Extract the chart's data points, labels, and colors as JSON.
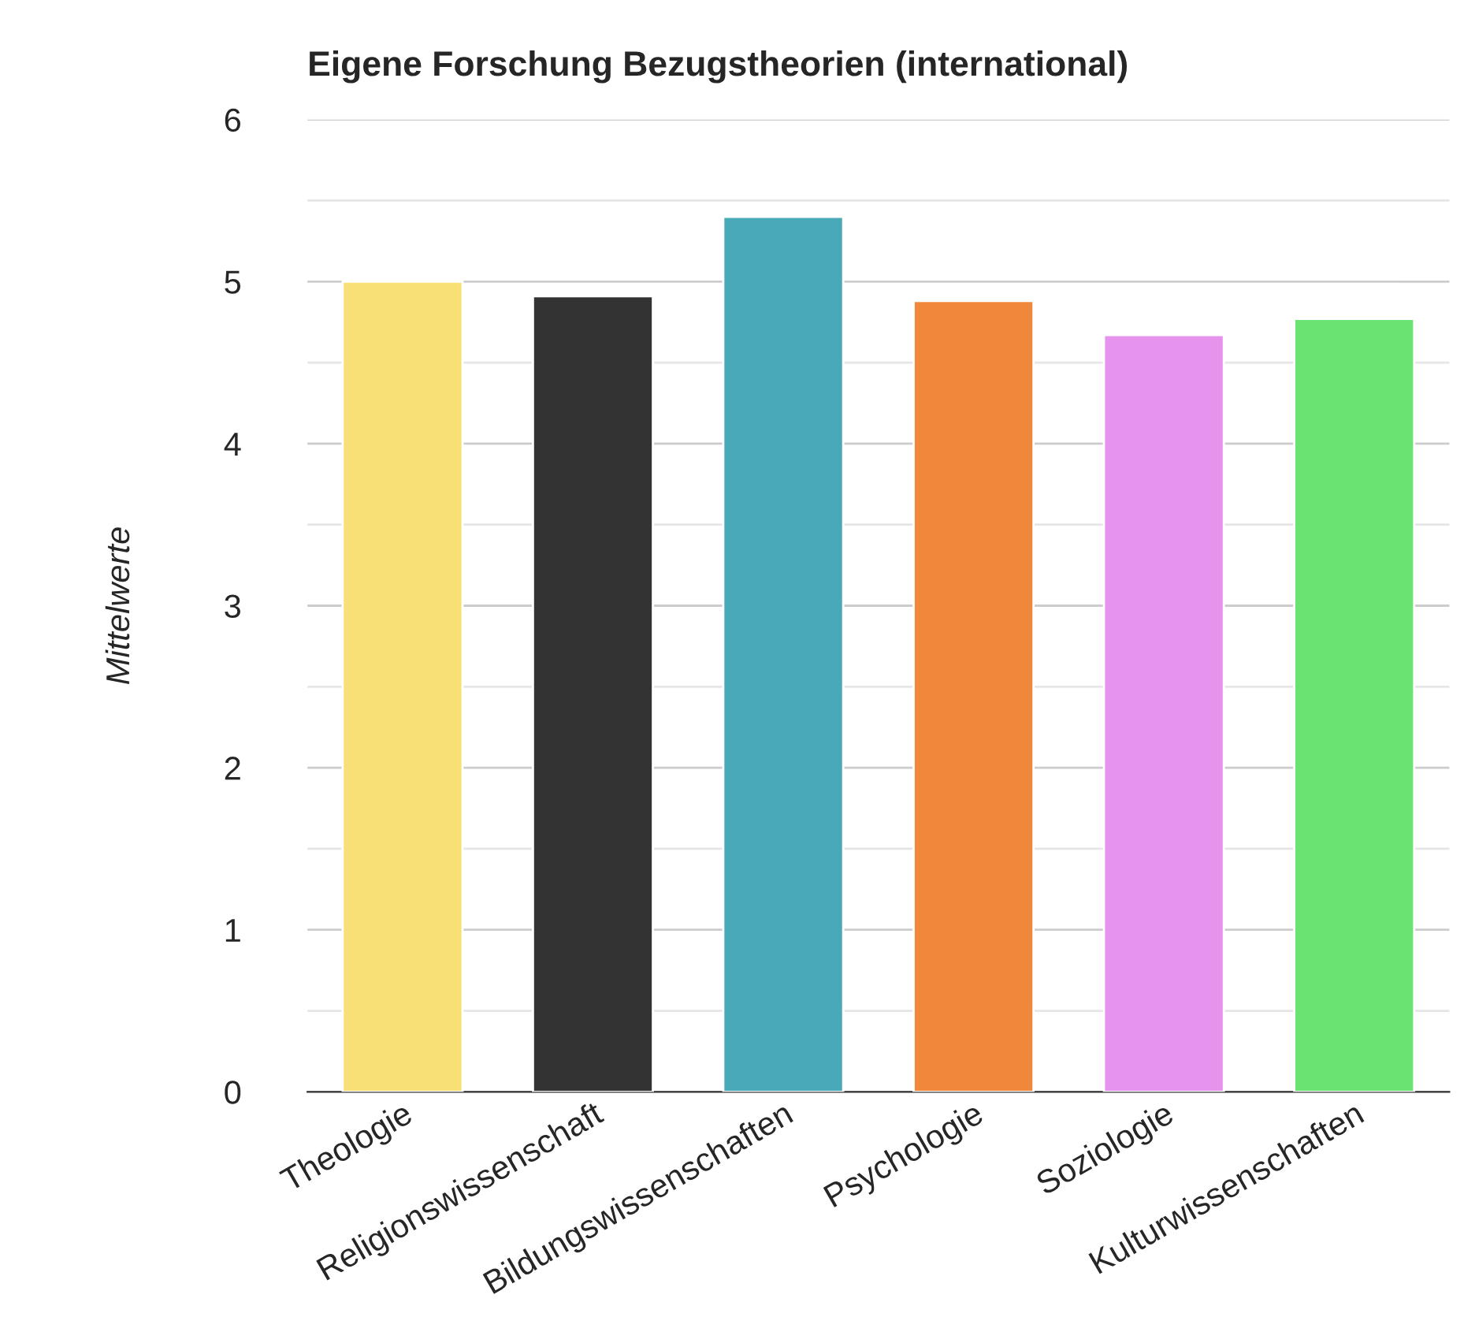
{
  "chart_data": {
    "type": "bar",
    "title": "Eigene Forschung Bezugstheorien (international)",
    "ylabel": "Mittelwerte",
    "categories": [
      "Theologie",
      "Religionswissenschaft",
      "Bildungswissenschaften",
      "Psychologie",
      "Soziologie",
      "Kulturwissenschaften"
    ],
    "values": [
      5.0,
      4.91,
      5.4,
      4.88,
      4.67,
      4.77
    ],
    "colors": [
      "#f9e076",
      "#333333",
      "#48a9b8",
      "#f0883c",
      "#e693ed",
      "#6be372"
    ],
    "ylim": [
      0,
      6
    ],
    "yticks": [
      0,
      {
        "value": 0.5,
        "label": null
      },
      1,
      {
        "value": 1.5,
        "label": null
      },
      2,
      {
        "value": 2.5,
        "label": null
      },
      3,
      {
        "value": 3.5,
        "label": null
      },
      4,
      {
        "value": 4.5,
        "label": null
      },
      5,
      {
        "value": 5.5,
        "label": null
      },
      6
    ],
    "grid": "y"
  }
}
